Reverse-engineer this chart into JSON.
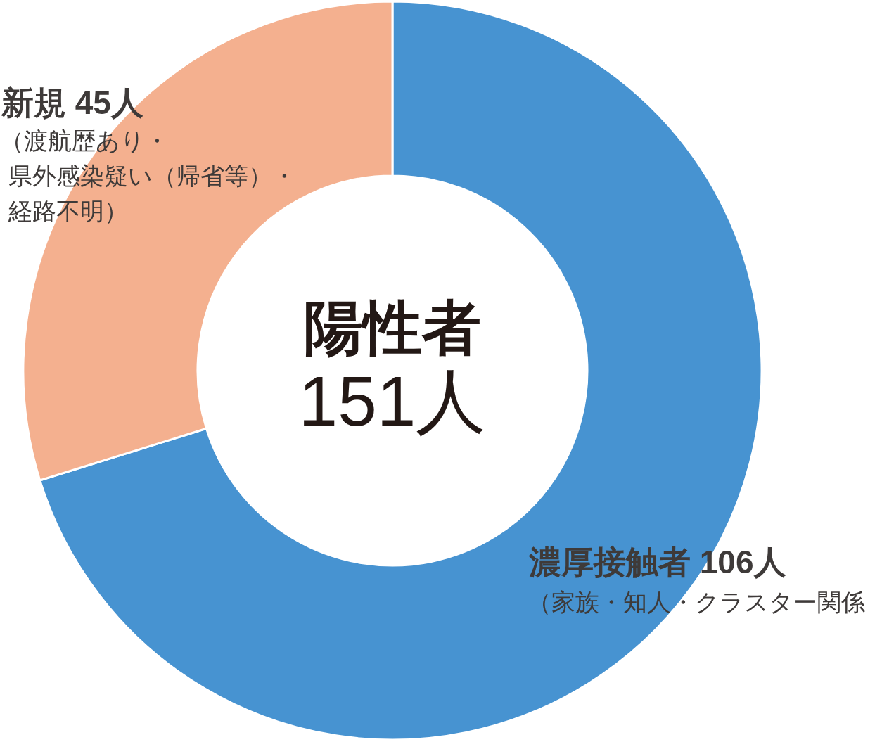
{
  "chart_data": {
    "type": "donut",
    "title": "陽性者",
    "subtitle": "151人",
    "categories": [
      "濃厚接触者",
      "新規"
    ],
    "values": [
      106,
      45
    ],
    "value_labels": [
      "106人",
      "45人"
    ],
    "colors": [
      "#4793d1",
      "#f4b08f"
    ],
    "annotations": [
      "（渡航歴あり・",
      "県外感染疑い（帰省等）・",
      "経路不明）",
      "（家族・知人・クラスター関係"
    ],
    "legend": false
  }
}
